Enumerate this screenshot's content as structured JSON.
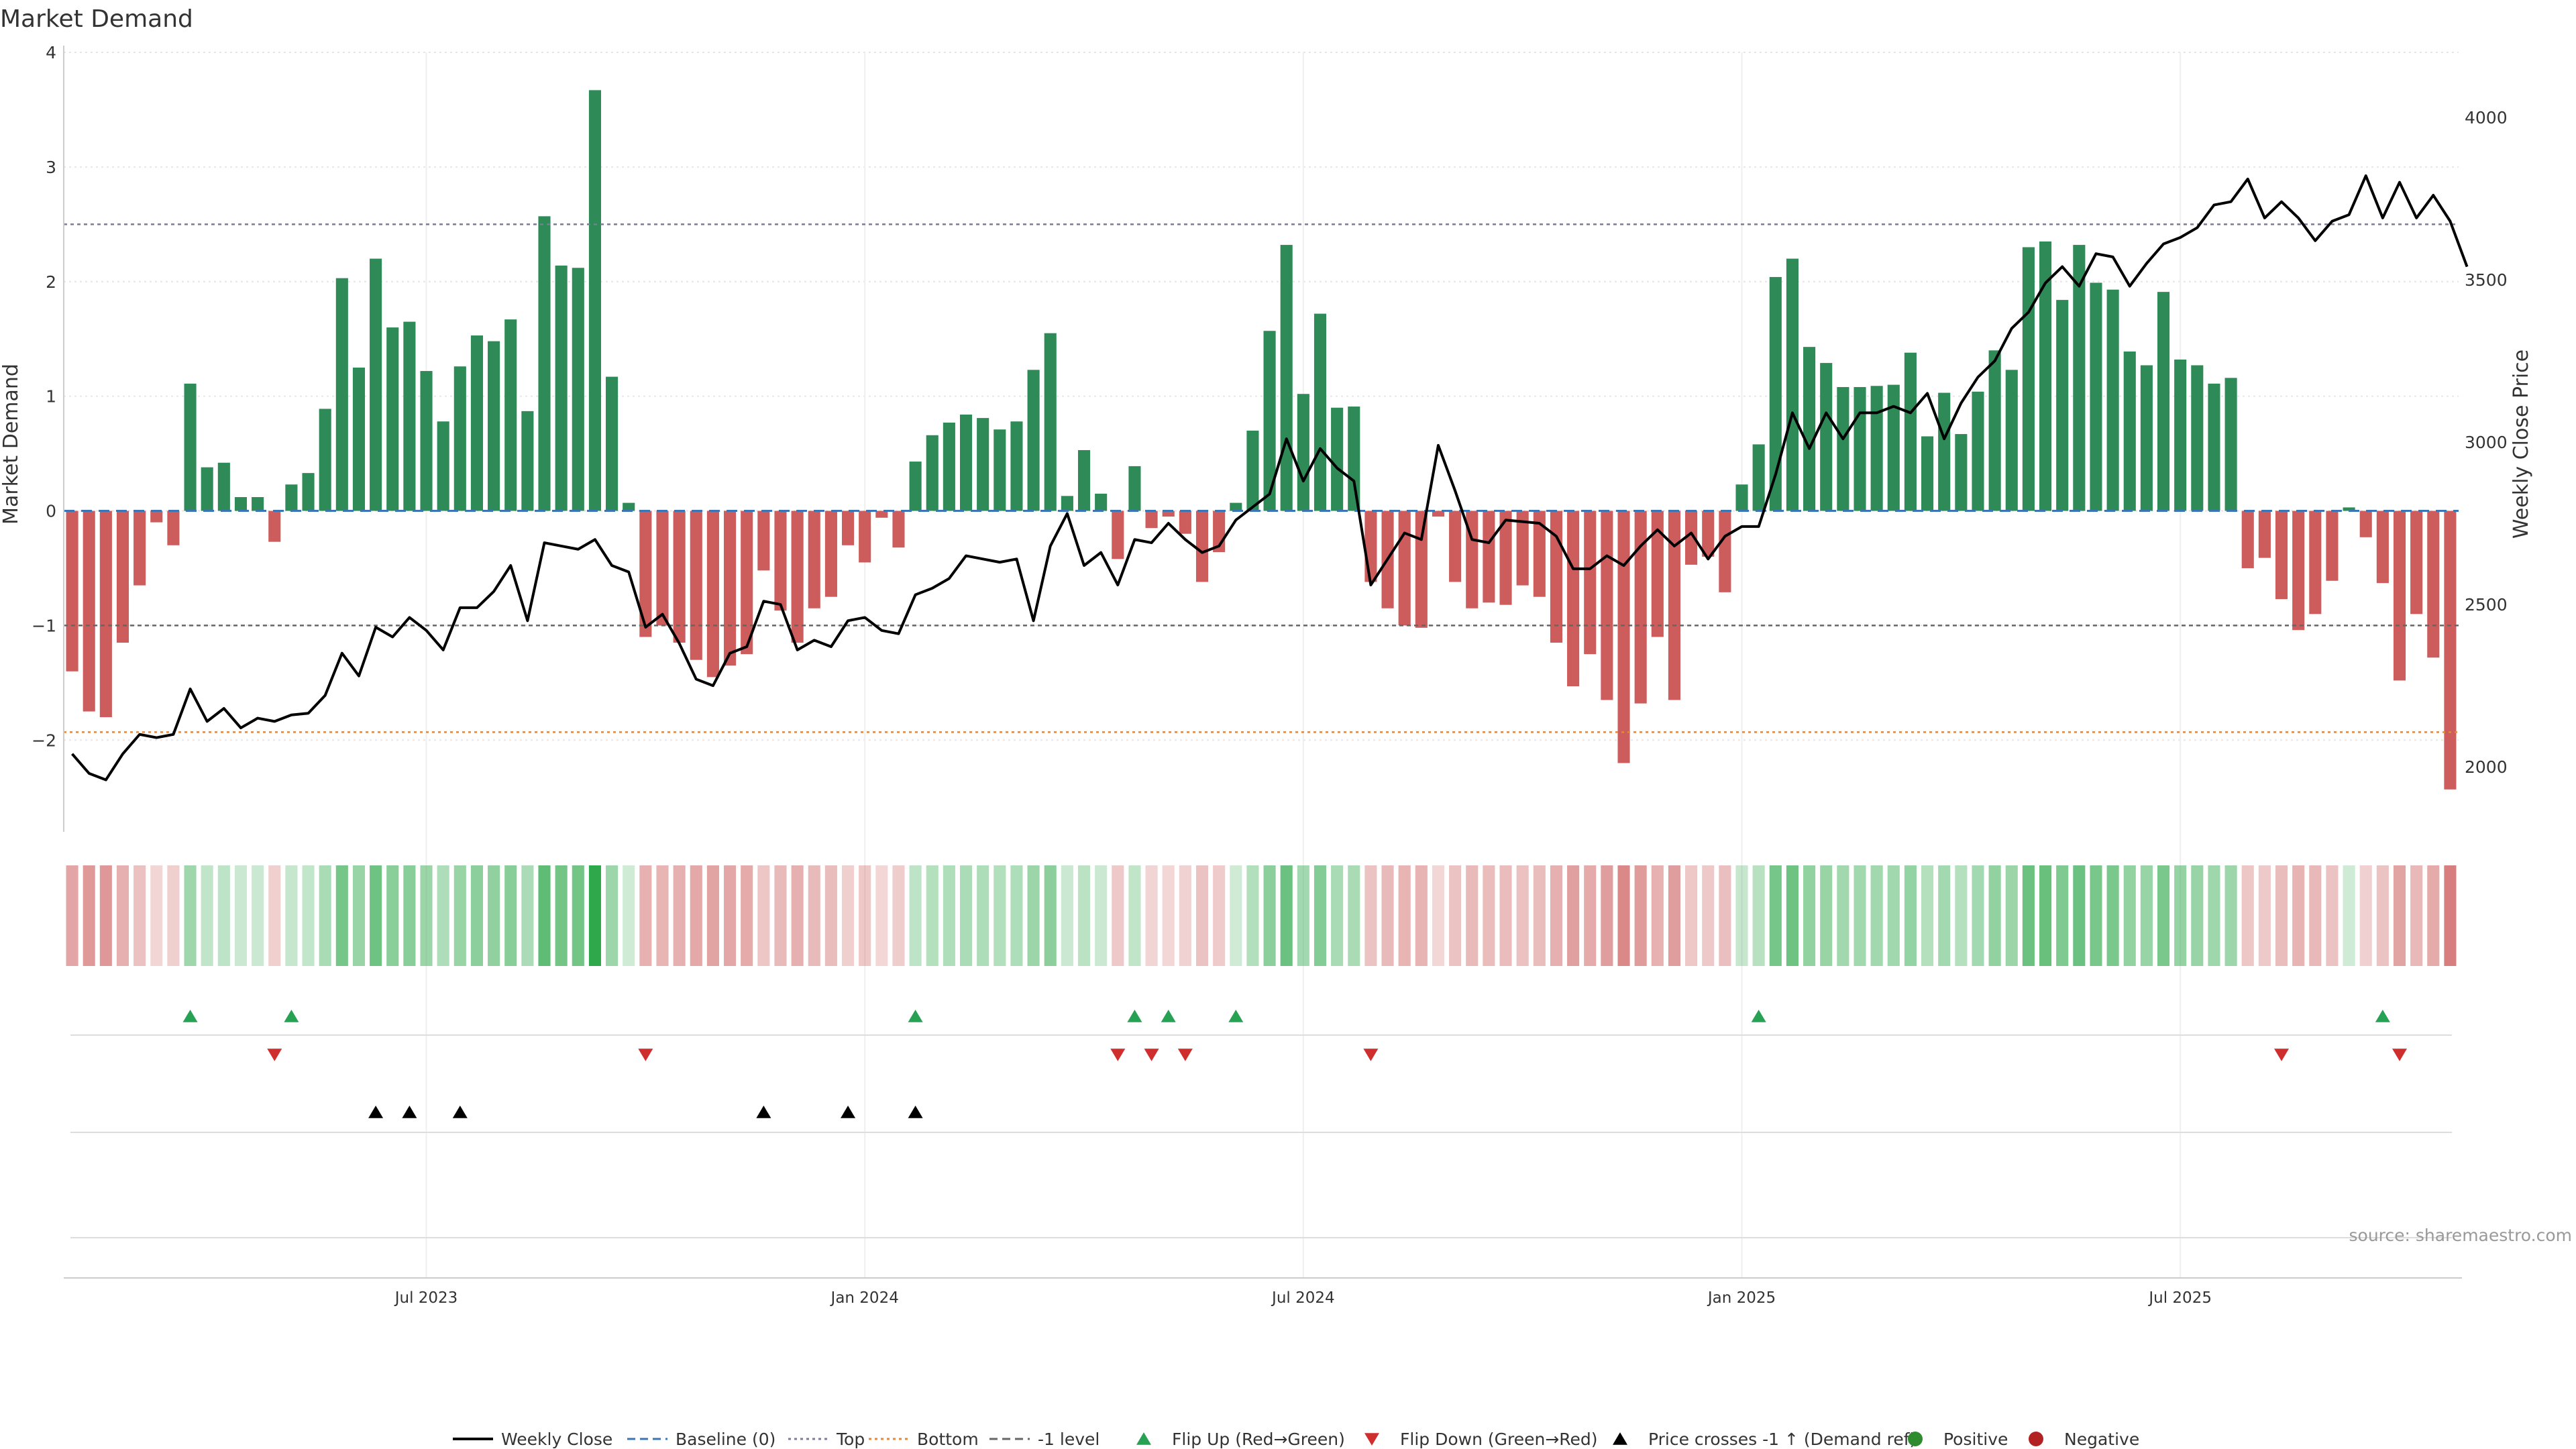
{
  "chart_data": {
    "type": "bar",
    "title": "Market Demand",
    "ylabel": "Market Demand",
    "y2label": "Weekly Close Price",
    "ylim": [
      -2.8,
      4.0
    ],
    "y2lim": [
      1800,
      4200
    ],
    "yticks": [
      4,
      3,
      2,
      1,
      0,
      -1,
      -2
    ],
    "y2ticks": [
      4000,
      3500,
      3000,
      2500,
      2000
    ],
    "xticks": [
      {
        "label": "Jul 2023",
        "week": 21
      },
      {
        "label": "Jan 2024",
        "week": 47
      },
      {
        "label": "Jul 2024",
        "week": 73
      },
      {
        "label": "Jan 2025",
        "week": 99
      },
      {
        "label": "Jul 2025",
        "week": 125
      }
    ],
    "reference_lines": {
      "top": 2.5,
      "bottom": -1.93,
      "minus_one": -1.0,
      "baseline": 0
    },
    "series": [
      {
        "name": "Market Demand",
        "values": [
          -1.4,
          -1.75,
          -1.8,
          -1.15,
          -0.65,
          -0.1,
          -0.3,
          1.11,
          0.38,
          0.42,
          0.12,
          0.12,
          -0.27,
          0.23,
          0.33,
          0.89,
          2.03,
          1.25,
          2.2,
          1.6,
          1.65,
          1.22,
          0.78,
          1.26,
          1.53,
          1.48,
          1.67,
          0.87,
          2.57,
          2.14,
          2.12,
          3.67,
          1.17,
          0.07,
          -1.1,
          -1.0,
          -1.15,
          -1.3,
          -1.45,
          -1.35,
          -1.25,
          -0.52,
          -0.87,
          -1.15,
          -0.85,
          -0.75,
          -0.3,
          -0.45,
          -0.06,
          -0.32,
          0.43,
          0.66,
          0.77,
          0.84,
          0.81,
          0.71,
          0.78,
          1.23,
          1.55,
          0.13,
          0.53,
          0.15,
          -0.42,
          0.39,
          -0.15,
          -0.05,
          -0.2,
          -0.62,
          -0.36,
          0.07,
          0.7,
          1.57,
          2.32,
          1.02,
          1.72,
          0.9,
          0.91,
          -0.62,
          -0.85,
          -1.0,
          -1.02,
          -0.05,
          -0.62,
          -0.85,
          -0.8,
          -0.82,
          -0.65,
          -0.75,
          -1.15,
          -1.53,
          -1.25,
          -1.65,
          -2.2,
          -1.68,
          -1.1,
          -1.65,
          -0.47,
          -0.4,
          -0.71,
          0.23,
          0.58,
          2.04,
          2.2,
          1.43,
          1.29,
          1.08,
          1.08,
          1.09,
          1.1,
          1.38,
          0.65,
          1.03,
          0.67,
          1.04,
          1.4,
          1.23,
          2.3,
          2.35,
          1.84,
          2.32,
          1.99,
          1.93,
          1.39,
          1.27,
          1.91,
          1.32,
          1.27,
          1.11,
          1.16,
          -0.5,
          -0.41,
          -0.77,
          -1.04,
          -0.9,
          -0.61,
          0.03,
          -0.23,
          -0.63,
          -1.48,
          -0.9,
          -1.28,
          -2.43
        ]
      },
      {
        "name": "Weekly Close",
        "values": [
          2040,
          1980,
          1960,
          2040,
          2100,
          2090,
          2100,
          2240,
          2140,
          2180,
          2120,
          2150,
          2140,
          2160,
          2165,
          2220,
          2350,
          2280,
          2430,
          2400,
          2460,
          2420,
          2360,
          2490,
          2490,
          2540,
          2620,
          2450,
          2690,
          2680,
          2670,
          2700,
          2620,
          2600,
          2430,
          2470,
          2380,
          2270,
          2250,
          2350,
          2370,
          2510,
          2500,
          2360,
          2390,
          2370,
          2450,
          2460,
          2420,
          2410,
          2530,
          2550,
          2580,
          2650,
          2640,
          2630,
          2640,
          2450,
          2680,
          2780,
          2620,
          2660,
          2560,
          2700,
          2690,
          2750,
          2700,
          2660,
          2680,
          2760,
          2800,
          2840,
          3010,
          2880,
          2980,
          2920,
          2880,
          2560,
          2640,
          2720,
          2700,
          2990,
          2850,
          2700,
          2690,
          2760,
          2755,
          2750,
          2710,
          2610,
          2610,
          2650,
          2620,
          2680,
          2730,
          2680,
          2720,
          2640,
          2710,
          2740,
          2740,
          2900,
          3090,
          2980,
          3090,
          3010,
          3090,
          3090,
          3110,
          3090,
          3150,
          3010,
          3120,
          3200,
          3250,
          3350,
          3400,
          3490,
          3540,
          3480,
          3580,
          3570,
          3480,
          3550,
          3610,
          3630,
          3660,
          3730,
          3740,
          3810,
          3690,
          3740,
          3690,
          3620,
          3680,
          3700,
          3820,
          3690,
          3800,
          3690,
          3760,
          3680,
          3540
        ]
      }
    ],
    "flip_up_weeks": [
      7,
      13,
      50,
      63,
      65,
      69,
      100,
      137
    ],
    "flip_down_weeks": [
      12,
      34,
      62,
      64,
      66,
      77,
      131,
      138
    ],
    "price_cross_weeks": [
      18,
      20,
      23,
      41,
      46,
      50
    ],
    "source": "source: sharemaestro.com",
    "legend": [
      {
        "label": "Weekly Close",
        "kind": "line",
        "color": "#000000"
      },
      {
        "label": "Baseline (0)",
        "kind": "dash",
        "color": "#3b75b5"
      },
      {
        "label": "Top",
        "kind": "dot",
        "color": "#7b7b9a"
      },
      {
        "label": "Bottom",
        "kind": "dot",
        "color": "#e0883b"
      },
      {
        "label": "-1 level",
        "kind": "dash",
        "color": "#666666"
      },
      {
        "label": "Flip Up (Red→Green)",
        "kind": "tri-up",
        "color": "#27a153"
      },
      {
        "label": "Flip Down (Green→Red)",
        "kind": "tri-down",
        "color": "#cf2e2e"
      },
      {
        "label": "Price crosses -1 ↑ (Demand ref)",
        "kind": "tri-up",
        "color": "#000000"
      },
      {
        "label": "Positive",
        "kind": "dot-circle",
        "color": "#2e8b2e"
      },
      {
        "label": "Negative",
        "kind": "dot-circle",
        "color": "#b22222"
      }
    ],
    "colors": {
      "positive_bar": "#2e8a57",
      "negative_bar": "#cd5c5c",
      "price_line": "#000000",
      "heat_pos": "#2ea84a",
      "heat_neg": "#c95252"
    }
  }
}
